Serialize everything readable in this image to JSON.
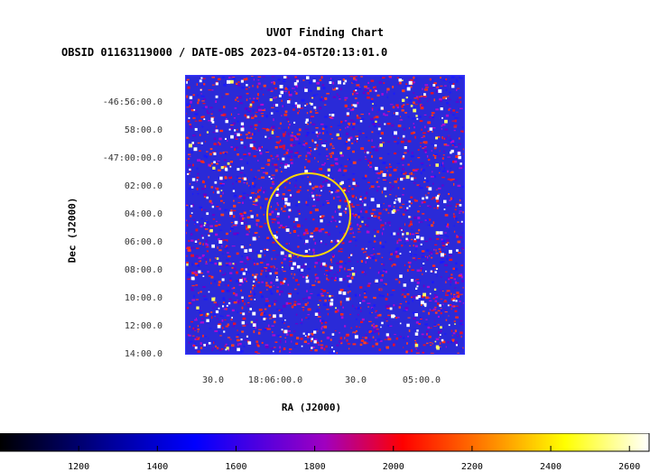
{
  "chart_data": {
    "type": "heatmap",
    "title": "UVOT Finding Chart",
    "subtitle": "OBSID 01163119000 / DATE-OBS 2023-04-05T20:13:01.0",
    "xlabel": "RA (J2000)",
    "ylabel": "Dec (J2000)",
    "y_ticks": [
      "-46:56:00.0",
      "58:00.0",
      "-47:00:00.0",
      "02:00.0",
      "04:00.0",
      "06:00.0",
      "08:00.0",
      "10:00.0",
      "12:00.0",
      "14:00.0"
    ],
    "x_ticks": [
      "30.0",
      "18:06:00.0",
      "30.0",
      "05:00.0"
    ],
    "colorbar": {
      "ticks": [
        1200,
        1400,
        1600,
        1800,
        2000,
        2200,
        2400,
        2600
      ],
      "range": [
        1000,
        2650
      ],
      "colors": [
        "#000000",
        "#0000ff",
        "#ff0000",
        "#ffff00",
        "#ffffff"
      ]
    },
    "circle_color": "#ffd700",
    "frame_color": "#3333ff"
  }
}
